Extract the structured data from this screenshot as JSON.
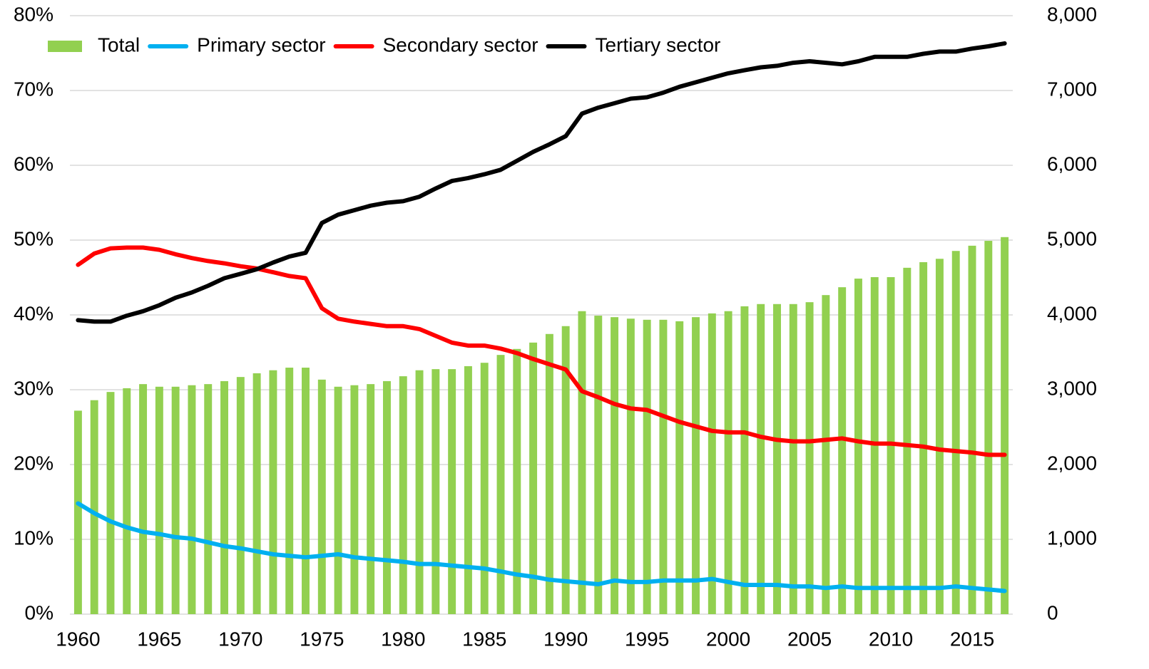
{
  "chart_data": {
    "type": "combo",
    "x": [
      1960,
      1961,
      1962,
      1963,
      1964,
      1965,
      1966,
      1967,
      1968,
      1969,
      1970,
      1971,
      1972,
      1973,
      1974,
      1975,
      1976,
      1977,
      1978,
      1979,
      1980,
      1981,
      1982,
      1983,
      1984,
      1985,
      1986,
      1987,
      1988,
      1989,
      1990,
      1991,
      1992,
      1993,
      1994,
      1995,
      1996,
      1997,
      1998,
      1999,
      2000,
      2001,
      2002,
      2003,
      2004,
      2005,
      2006,
      2007,
      2008,
      2009,
      2010,
      2011,
      2012,
      2013,
      2014,
      2015,
      2016,
      2017
    ],
    "xlim": [
      1959.5,
      2017.5
    ],
    "xticks": [
      1960,
      1965,
      1970,
      1975,
      1980,
      1985,
      1990,
      1995,
      2000,
      2005,
      2010,
      2015
    ],
    "ylim": [
      0,
      80
    ],
    "yticks": [
      {
        "value": 0,
        "label": "0%"
      },
      {
        "value": 10,
        "label": "10%"
      },
      {
        "value": 20,
        "label": "20%"
      },
      {
        "value": 30,
        "label": "30%"
      },
      {
        "value": 40,
        "label": "40%"
      },
      {
        "value": 50,
        "label": "50%"
      },
      {
        "value": 60,
        "label": "60%"
      },
      {
        "value": 70,
        "label": "70%"
      },
      {
        "value": 80,
        "label": "80%"
      }
    ],
    "y2lim": [
      0,
      8000
    ],
    "y2ticks": [
      0,
      {
        "value": 1000,
        "label": "1,000"
      },
      {
        "value": 2000,
        "label": "2,000"
      },
      {
        "value": 3000,
        "label": "3,000"
      },
      {
        "value": 4000,
        "label": "4,000"
      },
      {
        "value": 5000,
        "label": "5,000"
      },
      {
        "value": 6000,
        "label": "6,000"
      },
      {
        "value": 7000,
        "label": "7,000"
      },
      {
        "value": 8000,
        "label": "8,000"
      }
    ],
    "grid": true,
    "legend": "top-left",
    "series": [
      {
        "name": "Total",
        "kind": "bar",
        "axis": "y2",
        "color": "#92d050",
        "values": [
          2720,
          2860,
          2970,
          3020,
          3075,
          3040,
          3040,
          3060,
          3075,
          3115,
          3170,
          3220,
          3260,
          3295,
          3295,
          3135,
          3040,
          3060,
          3075,
          3115,
          3180,
          3260,
          3275,
          3275,
          3315,
          3360,
          3465,
          3545,
          3630,
          3745,
          3850,
          4050,
          3990,
          3970,
          3950,
          3935,
          3935,
          3915,
          3970,
          4020,
          4050,
          4115,
          4145,
          4145,
          4145,
          4170,
          4265,
          4370,
          4485,
          4505,
          4505,
          4630,
          4705,
          4750,
          4855,
          4925,
          4990,
          5040
        ]
      },
      {
        "name": "Primary sector",
        "kind": "line",
        "color": "#00b0f0",
        "values": [
          14.8,
          13.5,
          12.4,
          11.6,
          11.0,
          10.7,
          10.3,
          10.1,
          9.6,
          9.1,
          8.8,
          8.4,
          8.0,
          7.8,
          7.6,
          7.8,
          8.0,
          7.6,
          7.4,
          7.2,
          7.0,
          6.7,
          6.7,
          6.5,
          6.3,
          6.1,
          5.7,
          5.3,
          5.0,
          4.6,
          4.4,
          4.2,
          4.0,
          4.5,
          4.3,
          4.3,
          4.5,
          4.5,
          4.5,
          4.7,
          4.3,
          3.9,
          3.9,
          3.9,
          3.7,
          3.7,
          3.5,
          3.7,
          3.5,
          3.5,
          3.5,
          3.5,
          3.5,
          3.5,
          3.7,
          3.5,
          3.3,
          3.1
        ]
      },
      {
        "name": "Secondary sector",
        "kind": "line",
        "color": "#ff0000",
        "values": [
          46.7,
          48.2,
          48.9,
          49.0,
          49.0,
          48.7,
          48.1,
          47.6,
          47.2,
          46.9,
          46.5,
          46.2,
          45.7,
          45.2,
          44.9,
          40.9,
          39.5,
          39.1,
          38.8,
          38.5,
          38.5,
          38.1,
          37.2,
          36.3,
          35.9,
          35.9,
          35.5,
          34.9,
          34.1,
          33.4,
          32.7,
          29.8,
          29.0,
          28.1,
          27.5,
          27.3,
          26.5,
          25.7,
          25.1,
          24.5,
          24.3,
          24.3,
          23.7,
          23.3,
          23.1,
          23.1,
          23.3,
          23.5,
          23.1,
          22.8,
          22.8,
          22.6,
          22.4,
          22.0,
          21.8,
          21.6,
          21.3,
          21.3
        ]
      },
      {
        "name": "Tertiary sector",
        "kind": "line",
        "color": "#000000",
        "values": [
          39.3,
          39.1,
          39.1,
          39.9,
          40.5,
          41.3,
          42.3,
          43.0,
          43.9,
          44.9,
          45.5,
          46.1,
          47.0,
          47.8,
          48.3,
          52.3,
          53.4,
          54.0,
          54.6,
          55.0,
          55.2,
          55.8,
          56.9,
          57.9,
          58.3,
          58.8,
          59.4,
          60.6,
          61.8,
          62.8,
          63.9,
          66.9,
          67.7,
          68.3,
          68.9,
          69.1,
          69.7,
          70.5,
          71.1,
          71.7,
          72.3,
          72.7,
          73.1,
          73.3,
          73.7,
          73.9,
          73.7,
          73.5,
          73.9,
          74.5,
          74.5,
          74.5,
          74.9,
          75.2,
          75.2,
          75.6,
          75.9,
          76.3
        ]
      }
    ]
  }
}
